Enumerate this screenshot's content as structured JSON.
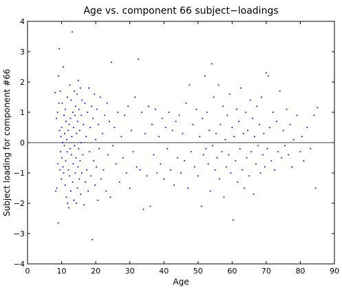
{
  "chart_data": {
    "type": "scatter",
    "title": "Age vs. component 66 subject−loadings",
    "xlabel": "Age",
    "ylabel": "Subject loading for component #66",
    "xlim": [
      0,
      90
    ],
    "ylim": [
      -4,
      4
    ],
    "xticks": [
      "0",
      "10",
      "20",
      "30",
      "40",
      "50",
      "60",
      "70",
      "80",
      "90"
    ],
    "yticks": [
      "−4",
      "−3",
      "−2",
      "−1",
      "0",
      "1",
      "2",
      "3",
      "4"
    ],
    "reference_line": 0,
    "grid": false,
    "marker_color": "#0000ff",
    "line_color": "#000000",
    "points": [
      [
        8.1,
        1.65
      ],
      [
        8.3,
        -1.6
      ],
      [
        8.5,
        0.8
      ],
      [
        8.6,
        -1.5
      ],
      [
        8.8,
        1.0
      ],
      [
        8.9,
        -0.7
      ],
      [
        9.0,
        -2.65
      ],
      [
        9.1,
        2.2
      ],
      [
        9.2,
        1.3
      ],
      [
        9.3,
        3.1
      ],
      [
        9.4,
        0.4
      ],
      [
        9.5,
        -0.9
      ],
      [
        9.6,
        1.7
      ],
      [
        9.7,
        -0.3
      ],
      [
        9.8,
        0.2
      ],
      [
        9.9,
        -1.2
      ],
      [
        10.0,
        0.5
      ],
      [
        10.1,
        -0.5
      ],
      [
        10.2,
        1.3
      ],
      [
        10.3,
        0.0
      ],
      [
        10.4,
        -0.8
      ],
      [
        10.5,
        2.5
      ],
      [
        10.6,
        -1.0
      ],
      [
        10.7,
        0.9
      ],
      [
        10.8,
        -0.1
      ],
      [
        10.9,
        0.3
      ],
      [
        11.0,
        -1.4
      ],
      [
        11.1,
        1.1
      ],
      [
        11.2,
        -0.6
      ],
      [
        11.3,
        0.7
      ],
      [
        11.4,
        -1.8
      ],
      [
        11.5,
        0.1
      ],
      [
        11.6,
        -0.3
      ],
      [
        11.7,
        1.5
      ],
      [
        11.8,
        -2.0
      ],
      [
        11.9,
        0.4
      ],
      [
        12.0,
        -0.9
      ],
      [
        12.1,
        -2.15
      ],
      [
        12.2,
        0.6
      ],
      [
        12.3,
        -1.1
      ],
      [
        12.4,
        1.9
      ],
      [
        12.5,
        -0.2
      ],
      [
        12.6,
        0.8
      ],
      [
        12.7,
        -1.6
      ],
      [
        12.8,
        1.4
      ],
      [
        12.9,
        -0.4
      ],
      [
        13.0,
        0.2
      ],
      [
        13.1,
        3.65
      ],
      [
        13.2,
        -1.3
      ],
      [
        13.3,
        1.0
      ],
      [
        13.4,
        -0.7
      ],
      [
        13.5,
        0.5
      ],
      [
        13.6,
        -1.9
      ],
      [
        13.7,
        1.7
      ],
      [
        13.8,
        -0.1
      ],
      [
        13.9,
        0.9
      ],
      [
        14.0,
        -1.0
      ],
      [
        14.1,
        1.2
      ],
      [
        14.2,
        -0.5
      ],
      [
        14.3,
        -2.0
      ],
      [
        14.4,
        0.3
      ],
      [
        14.5,
        1.6
      ],
      [
        14.6,
        -1.5
      ],
      [
        14.7,
        0.7
      ],
      [
        14.8,
        -0.8
      ],
      [
        14.9,
        2.05
      ],
      [
        15.0,
        -0.2
      ],
      [
        15.1,
        1.1
      ],
      [
        15.2,
        -1.2
      ],
      [
        15.3,
        0.4
      ],
      [
        15.4,
        -0.6
      ],
      [
        15.5,
        1.8
      ],
      [
        15.6,
        -1.7
      ],
      [
        15.7,
        0.0
      ],
      [
        15.8,
        0.9
      ],
      [
        15.9,
        -1.0
      ],
      [
        16.0,
        1.4
      ],
      [
        16.2,
        -0.4
      ],
      [
        16.4,
        0.6
      ],
      [
        16.6,
        -2.05
      ],
      [
        16.8,
        1.3
      ],
      [
        17.0,
        -1.3
      ],
      [
        17.2,
        0.2
      ],
      [
        17.4,
        -0.9
      ],
      [
        17.6,
        1.0
      ],
      [
        17.8,
        -1.6
      ],
      [
        18.0,
        1.8
      ],
      [
        18.2,
        -0.3
      ],
      [
        18.4,
        0.5
      ],
      [
        18.6,
        -1.1
      ],
      [
        18.8,
        1.2
      ],
      [
        19.0,
        -3.2
      ],
      [
        19.2,
        0.8
      ],
      [
        19.4,
        -0.6
      ],
      [
        19.6,
        1.6
      ],
      [
        19.8,
        -1.4
      ],
      [
        20.0,
        0.1
      ],
      [
        20.2,
        -0.8
      ],
      [
        20.4,
        1.1
      ],
      [
        20.6,
        -1.9
      ],
      [
        20.8,
        0.6
      ],
      [
        21.0,
        -0.2
      ],
      [
        21.3,
        1.5
      ],
      [
        21.6,
        -1.2
      ],
      [
        22.0,
        0.3
      ],
      [
        22.3,
        -0.9
      ],
      [
        22.6,
        0.9
      ],
      [
        23.0,
        -1.6
      ],
      [
        23.3,
        1.3
      ],
      [
        23.6,
        -0.4
      ],
      [
        24.0,
        0.7
      ],
      [
        24.3,
        -1.8
      ],
      [
        24.6,
        2.65
      ],
      [
        25.0,
        -0.1
      ],
      [
        25.5,
        0.5
      ],
      [
        26.0,
        -0.7
      ],
      [
        26.5,
        1.0
      ],
      [
        27.0,
        -1.3
      ],
      [
        27.5,
        0.2
      ],
      [
        28.0,
        -0.5
      ],
      [
        28.5,
        0.9
      ],
      [
        29.0,
        -1.0
      ],
      [
        29.5,
        1.2
      ],
      [
        30.0,
        -1.5
      ],
      [
        30.5,
        0.4
      ],
      [
        31.0,
        -0.3
      ],
      [
        31.5,
        1.5
      ],
      [
        32.0,
        -0.8
      ],
      [
        32.5,
        2.75
      ],
      [
        33.0,
        -0.9
      ],
      [
        33.5,
        1.0
      ],
      [
        34.0,
        -2.2
      ],
      [
        34.5,
        0.3
      ],
      [
        35.0,
        -1.1
      ],
      [
        35.5,
        1.2
      ],
      [
        36.0,
        -2.1
      ],
      [
        36.5,
        0.6
      ],
      [
        37.0,
        -0.4
      ],
      [
        37.5,
        1.1
      ],
      [
        38.0,
        -1.0
      ],
      [
        38.5,
        0.2
      ],
      [
        39.0,
        -0.7
      ],
      [
        39.5,
        0.8
      ],
      [
        40.0,
        -1.2
      ],
      [
        40.5,
        0.5
      ],
      [
        41.0,
        -0.2
      ],
      [
        41.5,
        1.0
      ],
      [
        42.0,
        -0.9
      ],
      [
        42.5,
        0.4
      ],
      [
        43.0,
        -1.4
      ],
      [
        43.5,
        0.7
      ],
      [
        44.0,
        -0.5
      ],
      [
        44.5,
        0.9
      ],
      [
        45.0,
        -1.0
      ],
      [
        45.5,
        0.3
      ],
      [
        46.0,
        -0.6
      ],
      [
        46.5,
        1.3
      ],
      [
        47.0,
        -1.5
      ],
      [
        47.5,
        1.9
      ],
      [
        48.0,
        -0.3
      ],
      [
        48.5,
        0.6
      ],
      [
        49.0,
        -0.8
      ],
      [
        49.5,
        1.1
      ],
      [
        50.0,
        -1.1
      ],
      [
        50.5,
        0.2
      ],
      [
        51.0,
        -2.1
      ],
      [
        51.3,
        0.8
      ],
      [
        51.6,
        -0.4
      ],
      [
        52.0,
        2.2
      ],
      [
        52.3,
        -0.2
      ],
      [
        52.6,
        1.0
      ],
      [
        53.0,
        -0.7
      ],
      [
        53.3,
        0.4
      ],
      [
        53.6,
        -1.6
      ],
      [
        54.0,
        2.6
      ],
      [
        54.3,
        -0.1
      ],
      [
        54.6,
        1.5
      ],
      [
        55.0,
        -0.9
      ],
      [
        55.3,
        0.3
      ],
      [
        55.6,
        -0.5
      ],
      [
        56.0,
        1.9
      ],
      [
        56.3,
        -1.2
      ],
      [
        56.6,
        0.6
      ],
      [
        57.0,
        -0.3
      ],
      [
        57.3,
        1.2
      ],
      [
        57.6,
        -1.8
      ],
      [
        58.0,
        0.1
      ],
      [
        58.3,
        -0.8
      ],
      [
        58.6,
        0.9
      ],
      [
        59.0,
        -0.4
      ],
      [
        59.3,
        1.6
      ],
      [
        59.6,
        -1.0
      ],
      [
        60.0,
        0.5
      ],
      [
        60.3,
        -2.55
      ],
      [
        60.6,
        0.2
      ],
      [
        61.0,
        -0.6
      ],
      [
        61.3,
        1.1
      ],
      [
        61.6,
        -1.3
      ],
      [
        62.0,
        0.7
      ],
      [
        62.3,
        -0.2
      ],
      [
        62.6,
        1.8
      ],
      [
        63.0,
        -0.9
      ],
      [
        63.3,
        0.3
      ],
      [
        63.6,
        -1.5
      ],
      [
        64.0,
        1.0
      ],
      [
        64.3,
        -0.5
      ],
      [
        64.6,
        0.4
      ],
      [
        65.0,
        -1.1
      ],
      [
        65.3,
        1.4
      ],
      [
        65.6,
        -0.3
      ],
      [
        66.0,
        0.8
      ],
      [
        66.3,
        -1.7
      ],
      [
        66.6,
        0.2
      ],
      [
        67.0,
        -0.7
      ],
      [
        67.3,
        1.2
      ],
      [
        67.6,
        -0.1
      ],
      [
        68.0,
        0.6
      ],
      [
        68.3,
        -1.0
      ],
      [
        68.6,
        1.5
      ],
      [
        69.0,
        -0.4
      ],
      [
        69.3,
        0.3
      ],
      [
        69.6,
        -0.8
      ],
      [
        70.0,
        2.3
      ],
      [
        70.3,
        -0.2
      ],
      [
        70.6,
        2.2
      ],
      [
        71.0,
        0.5
      ],
      [
        71.5,
        -0.6
      ],
      [
        72.0,
        1.0
      ],
      [
        72.5,
        -0.9
      ],
      [
        73.0,
        0.7
      ],
      [
        73.5,
        -0.3
      ],
      [
        74.0,
        1.7
      ],
      [
        74.5,
        -0.5
      ],
      [
        75.0,
        0.4
      ],
      [
        75.5,
        -0.1
      ],
      [
        76.0,
        1.1
      ],
      [
        76.5,
        -0.4
      ],
      [
        77.0,
        0.6
      ],
      [
        77.5,
        -0.8
      ],
      [
        78.0,
        0.1
      ],
      [
        79.0,
        0.9
      ],
      [
        80.0,
        -0.3
      ],
      [
        80.5,
        0.2
      ],
      [
        81.0,
        -0.6
      ],
      [
        82.0,
        0.5
      ],
      [
        83.0,
        -0.2
      ],
      [
        84.0,
        0.9
      ],
      [
        84.5,
        -1.5
      ],
      [
        85.0,
        1.15
      ]
    ]
  }
}
